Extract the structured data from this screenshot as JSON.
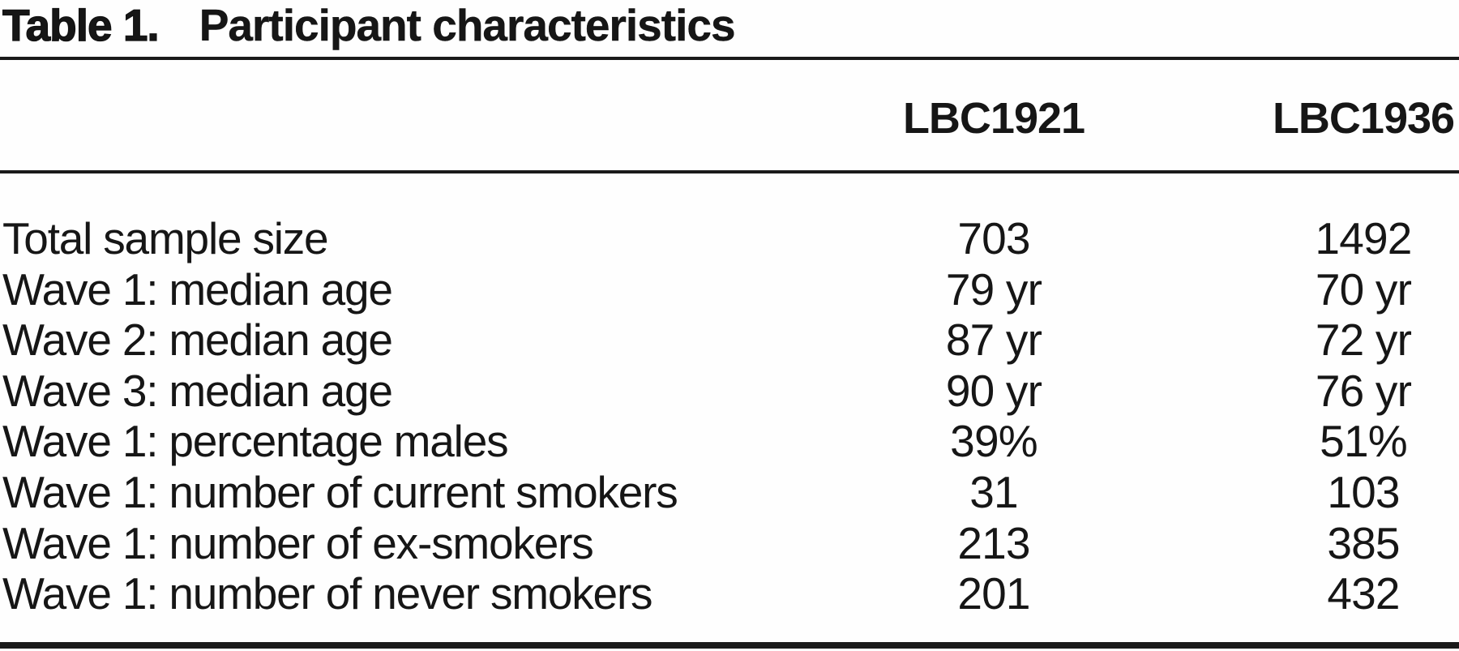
{
  "table": {
    "title_label": "Table 1.",
    "title_caption": "Participant characteristics",
    "columns": [
      "LBC1921",
      "LBC1936"
    ],
    "rows": [
      {
        "label": "Total sample size",
        "lbc1921": "703",
        "lbc1936": "1492"
      },
      {
        "label": "Wave 1: median age",
        "lbc1921": "79 yr",
        "lbc1936": "70 yr"
      },
      {
        "label": "Wave 2: median age",
        "lbc1921": "87 yr",
        "lbc1936": "72 yr"
      },
      {
        "label": "Wave 3: median age",
        "lbc1921": "90 yr",
        "lbc1936": "76 yr"
      },
      {
        "label": "Wave 1: percentage males",
        "lbc1921": "39%",
        "lbc1936": "51%"
      },
      {
        "label": "Wave 1: number of current smokers",
        "lbc1921": "31",
        "lbc1936": "103"
      },
      {
        "label": "Wave 1: number of ex-smokers",
        "lbc1921": "213",
        "lbc1936": "385"
      },
      {
        "label": "Wave 1: number of never smokers",
        "lbc1921": "201",
        "lbc1936": "432"
      }
    ],
    "colors": {
      "text": "#161616",
      "rule": "#1a1a1a",
      "background": "#fefefe"
    }
  }
}
